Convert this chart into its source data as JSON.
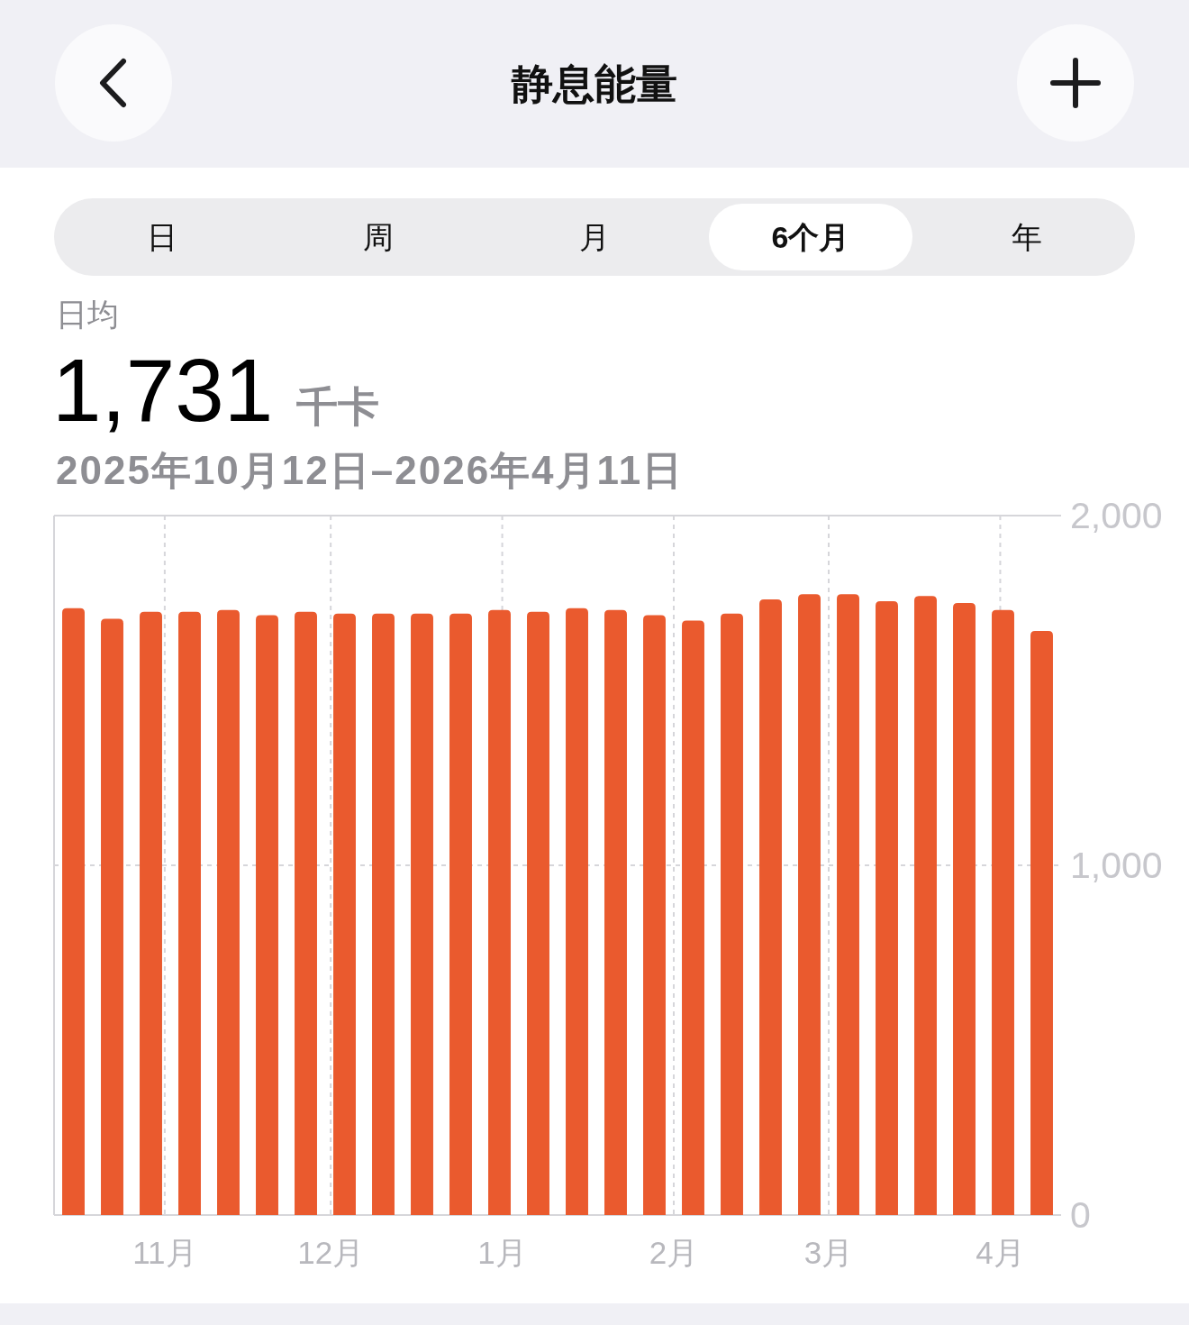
{
  "chart_data": {
    "type": "bar",
    "title": "静息能量",
    "subtitle": "2025年10月12日–2026年4月11日",
    "annotations": [
      "日",
      "周",
      "月",
      "6个月",
      "年",
      "日均",
      "1,731",
      "千卡"
    ],
    "x": [
      "2025-10-15T12:00",
      "2025-10-22T12:00",
      "2025-10-29T12:00",
      "2025-11-05T12:00",
      "2025-11-12T12:00",
      "2025-11-19T12:00",
      "2025-11-26T12:00",
      "2025-12-03T12:00",
      "2025-12-10T12:00",
      "2025-12-17T12:00",
      "2025-12-24T12:00",
      "2025-12-31T12:00",
      "2026-01-07T12:00",
      "2026-01-14T12:00",
      "2026-01-21T12:00",
      "2026-01-28T12:00",
      "2026-02-04T12:00",
      "2026-02-11T12:00",
      "2026-02-18T12:00",
      "2026-02-25T12:00",
      "2026-03-04T12:00",
      "2026-03-11T12:00",
      "2026-03-18T12:00",
      "2026-03-25T12:00",
      "2026-04-01T12:00",
      "2026-04-08T12:00"
    ],
    "values": [
      1735,
      1705,
      1725,
      1725,
      1730,
      1715,
      1725,
      1720,
      1720,
      1720,
      1720,
      1730,
      1725,
      1735,
      1730,
      1715,
      1700,
      1720,
      1760,
      1775,
      1775,
      1755,
      1770,
      1750,
      1730,
      1670
    ],
    "color": "#ea5a2e",
    "xlim": [
      "2025-10-12",
      "2026-04-12"
    ],
    "xticks": [
      {
        "value": "2025-11-01",
        "label": "11月"
      },
      {
        "value": "2025-12-01",
        "label": "12月"
      },
      {
        "value": "2026-01-01",
        "label": "1月"
      },
      {
        "value": "2026-02-01",
        "label": "2月"
      },
      {
        "value": "2026-03-01",
        "label": "3月"
      },
      {
        "value": "2026-04-01",
        "label": "4月"
      }
    ],
    "ylim": [
      0,
      2000
    ],
    "yticks": [
      0,
      {
        "value": 1000,
        "label": "1,000"
      },
      {
        "value": 2000,
        "label": "2,000"
      }
    ],
    "grid": true
  }
}
